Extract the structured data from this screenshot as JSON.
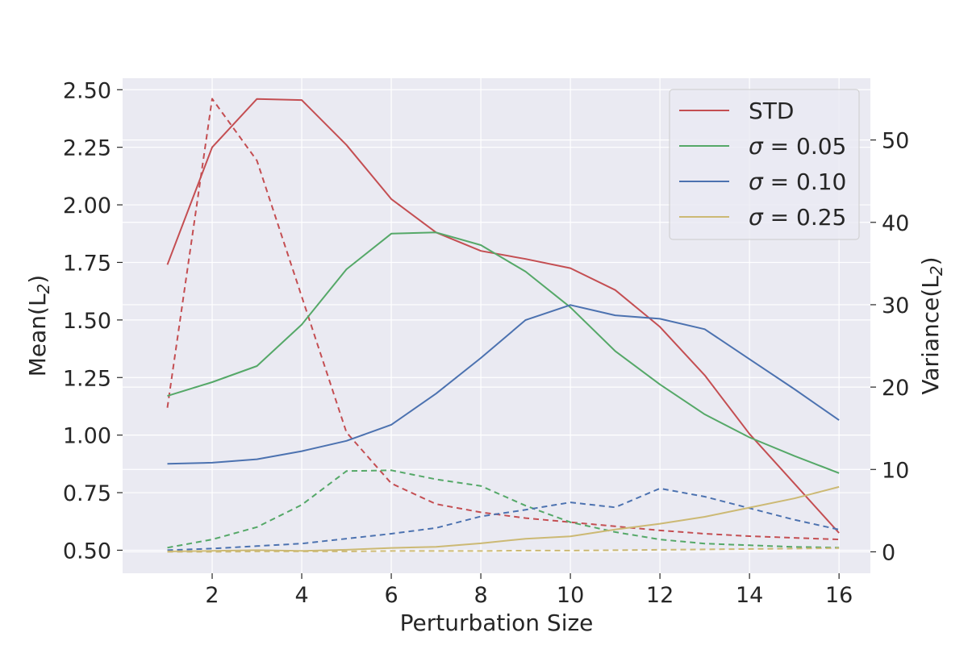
{
  "chart_data": {
    "type": "line",
    "xlabel": "Perturbation Size",
    "ylabel_left": "Mean(L",
    "ylabel_left_sub": "2",
    "ylabel_right": "Variance(L",
    "ylabel_right_sub": "2",
    "x": [
      1,
      2,
      3,
      4,
      5,
      6,
      7,
      8,
      9,
      10,
      11,
      12,
      13,
      14,
      15,
      16
    ],
    "xlim": [
      0.0,
      16.7
    ],
    "xticks": [
      2,
      4,
      6,
      8,
      10,
      12,
      14,
      16
    ],
    "ylim_left": [
      0.4,
      2.55
    ],
    "yticks_left": [
      0.5,
      0.75,
      1.0,
      1.25,
      1.5,
      1.75,
      2.0,
      2.25,
      2.5
    ],
    "yticks_left_labels": [
      "0.50",
      "0.75",
      "1.00",
      "1.25",
      "1.50",
      "1.75",
      "2.00",
      "2.25",
      "2.50"
    ],
    "ylim_right": [
      -2.6,
      57.5
    ],
    "yticks_right": [
      0,
      10,
      20,
      30,
      40,
      50
    ],
    "grid": true,
    "legend_position": "top-right",
    "series": [
      {
        "name": "STD",
        "color": "#c44e52",
        "mean": [
          1.74,
          2.25,
          2.46,
          2.455,
          2.26,
          2.025,
          1.88,
          1.8,
          1.765,
          1.725,
          1.63,
          1.47,
          1.26,
          1.005,
          0.79,
          0.575
        ],
        "variance": [
          17.5,
          55.0,
          47.5,
          31.0,
          14.5,
          8.3,
          5.8,
          4.8,
          4.1,
          3.6,
          3.1,
          2.6,
          2.2,
          1.9,
          1.7,
          1.5
        ]
      },
      {
        "name": "σ = 0.05",
        "name_sigma": "σ",
        "name_rest": " = 0.05",
        "color": "#55a868",
        "mean": [
          1.17,
          1.23,
          1.3,
          1.48,
          1.72,
          1.875,
          1.88,
          1.825,
          1.71,
          1.555,
          1.365,
          1.22,
          1.09,
          0.99,
          0.91,
          0.835
        ],
        "variance": [
          0.5,
          1.5,
          3.0,
          5.7,
          9.8,
          9.9,
          8.8,
          8.0,
          5.6,
          3.6,
          2.4,
          1.5,
          1.0,
          0.8,
          0.6,
          0.5
        ]
      },
      {
        "name": "σ = 0.10",
        "name_sigma": "σ",
        "name_rest": " = 0.10",
        "color": "#4c72b0",
        "mean": [
          0.875,
          0.88,
          0.895,
          0.93,
          0.975,
          1.045,
          1.18,
          1.335,
          1.5,
          1.565,
          1.52,
          1.505,
          1.46,
          1.33,
          1.2,
          1.065
        ],
        "variance": [
          0.2,
          0.4,
          0.7,
          1.0,
          1.6,
          2.2,
          2.9,
          4.3,
          5.1,
          6.0,
          5.4,
          7.7,
          6.7,
          5.3,
          3.9,
          2.7
        ]
      },
      {
        "name": "σ = 0.25",
        "name_sigma": "σ",
        "name_rest": " = 0.25",
        "color": "#ccb974",
        "mean": [
          0.495,
          0.497,
          0.5,
          0.497,
          0.502,
          0.51,
          0.515,
          0.53,
          0.55,
          0.56,
          0.59,
          0.615,
          0.645,
          0.685,
          0.725,
          0.775
        ],
        "variance": [
          0.0,
          0.0,
          0.05,
          0.05,
          0.05,
          0.1,
          0.1,
          0.1,
          0.15,
          0.15,
          0.2,
          0.25,
          0.3,
          0.35,
          0.4,
          0.45
        ]
      }
    ]
  }
}
